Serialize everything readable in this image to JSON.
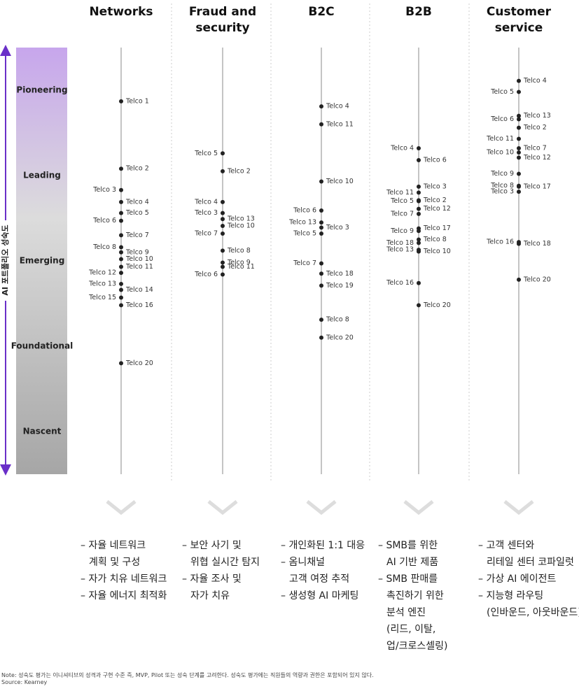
{
  "chart_data": {
    "type": "dot",
    "y_label": "AI 포트폴리오 성숙도",
    "levels": [
      "Pioneering",
      "Leading",
      "Emerging",
      "Foundational",
      "Nascent"
    ],
    "ylim": [
      0,
      5
    ],
    "point_color": "#222222",
    "columns": [
      {
        "name": "Networks",
        "points": [
          {
            "name": "Telco 1",
            "value": 4.37
          },
          {
            "name": "Telco 2",
            "value": 3.58
          },
          {
            "name": "Telco 3",
            "value": 3.33
          },
          {
            "name": "Telco 4",
            "value": 3.19
          },
          {
            "name": "Telco 5",
            "value": 3.06
          },
          {
            "name": "Telco 6",
            "value": 2.97
          },
          {
            "name": "Telco 7",
            "value": 2.8
          },
          {
            "name": "Telco 8",
            "value": 2.66
          },
          {
            "name": "Telco 9",
            "value": 2.6
          },
          {
            "name": "Telco 10",
            "value": 2.52
          },
          {
            "name": "Telco 11",
            "value": 2.43
          },
          {
            "name": "Telco 12",
            "value": 2.36
          },
          {
            "name": "Telco 13",
            "value": 2.23
          },
          {
            "name": "Telco 14",
            "value": 2.16
          },
          {
            "name": "Telco 15",
            "value": 2.07
          },
          {
            "name": "Telco 16",
            "value": 1.98
          },
          {
            "name": "Telco 20",
            "value": 1.3
          }
        ],
        "bullets": [
          [
            "– 자율 네트워크",
            "계획 및 구성"
          ],
          [
            "– 자가 치유 네트워크"
          ],
          [
            "– 자율 에너지 최적화"
          ]
        ]
      },
      {
        "name": "Fraud and security",
        "points": [
          {
            "name": "Telco 5",
            "value": 3.76
          },
          {
            "name": "Telco 2",
            "value": 3.55
          },
          {
            "name": "Telco 4",
            "value": 3.19
          },
          {
            "name": "Telco 3",
            "value": 3.06
          },
          {
            "name": "Telco 13",
            "value": 2.99
          },
          {
            "name": "Telco 10",
            "value": 2.91
          },
          {
            "name": "Telco 7",
            "value": 2.82
          },
          {
            "name": "Telco 8",
            "value": 2.62
          },
          {
            "name": "Telco 9",
            "value": 2.48
          },
          {
            "name": "Telco 11",
            "value": 2.43
          },
          {
            "name": "Telco 6",
            "value": 2.34
          }
        ],
        "bullets": [
          [
            "– 보안 사기 및",
            "위협 실시간 탐지"
          ],
          [
            "– 자율 조사 및",
            "자가 치유"
          ]
        ]
      },
      {
        "name": "B2C",
        "points": [
          {
            "name": "Telco 4",
            "value": 4.31
          },
          {
            "name": "Telco 11",
            "value": 4.1
          },
          {
            "name": "Telco 10",
            "value": 3.43
          },
          {
            "name": "Telco 6",
            "value": 3.09
          },
          {
            "name": "Telco 13",
            "value": 2.95
          },
          {
            "name": "Telco 3",
            "value": 2.89
          },
          {
            "name": "Telco 5",
            "value": 2.82
          },
          {
            "name": "Telco 7",
            "value": 2.47
          },
          {
            "name": "Telco 18",
            "value": 2.35
          },
          {
            "name": "Telco 19",
            "value": 2.21
          },
          {
            "name": "Telco 8",
            "value": 1.81
          },
          {
            "name": "Telco 20",
            "value": 1.6
          }
        ],
        "bullets": [
          [
            "– 개인화된 1:1 대응"
          ],
          [
            "– 옴니채널",
            "고객 여정 추적"
          ],
          [
            "– 생성형 AI 마케팅"
          ]
        ]
      },
      {
        "name": "B2B",
        "points": [
          {
            "name": "Telco 4",
            "value": 3.82
          },
          {
            "name": "Telco 6",
            "value": 3.68
          },
          {
            "name": "Telco 3",
            "value": 3.37
          },
          {
            "name": "Telco 11",
            "value": 3.3
          },
          {
            "name": "Telco 2",
            "value": 3.21
          },
          {
            "name": "Telco 5",
            "value": 3.2
          },
          {
            "name": "Telco 12",
            "value": 3.11
          },
          {
            "name": "Telco 7",
            "value": 3.05
          },
          {
            "name": "Telco 17",
            "value": 2.88
          },
          {
            "name": "Telco 9",
            "value": 2.85
          },
          {
            "name": "Telco 8",
            "value": 2.75
          },
          {
            "name": "Telco 18",
            "value": 2.71
          },
          {
            "name": "Telco 13",
            "value": 2.63
          },
          {
            "name": "Telco 10",
            "value": 2.61
          },
          {
            "name": "Telco 16",
            "value": 2.24
          },
          {
            "name": "Telco 20",
            "value": 1.98
          }
        ],
        "bullets": [
          [
            "– SMB를 위한",
            "AI 기반 제품"
          ],
          [
            "– SMB 판매를",
            "촉진하기 위한",
            "분석 엔진",
            "(리드, 이탈,",
            "업/크로스셀링)"
          ]
        ]
      },
      {
        "name": "Customer service",
        "points": [
          {
            "name": "Telco 4",
            "value": 4.61
          },
          {
            "name": "Telco 5",
            "value": 4.48
          },
          {
            "name": "Telco 13",
            "value": 4.2
          },
          {
            "name": "Telco 6",
            "value": 4.16
          },
          {
            "name": "Telco 2",
            "value": 4.06
          },
          {
            "name": "Telco 11",
            "value": 3.93
          },
          {
            "name": "Telco 7",
            "value": 3.82
          },
          {
            "name": "Telco 10",
            "value": 3.77
          },
          {
            "name": "Telco 12",
            "value": 3.71
          },
          {
            "name": "Telco 9",
            "value": 3.52
          },
          {
            "name": "Telco 8",
            "value": 3.38
          },
          {
            "name": "Telco 17",
            "value": 3.37
          },
          {
            "name": "Telco 3",
            "value": 3.31
          },
          {
            "name": "Telco 16",
            "value": 2.72
          },
          {
            "name": "Telco 18",
            "value": 2.7
          },
          {
            "name": "Telco 20",
            "value": 2.28
          }
        ],
        "bullets": [
          [
            "– 고객 센터와",
            "리테일 센터 코파일럿"
          ],
          [
            "– 가상 AI 에이전트"
          ],
          [
            "– 지능형 라우팅",
            "(인바운드, 아웃바운드)"
          ]
        ]
      }
    ]
  },
  "note": "Note: 성숙도 평가는 이니셔티브의 성격과 구현 수준 즉, MVP, Pilot 또는 성숙 단계를 고려한다. 성숙도 평가에는 직원들의 역량과 권한은 포함되어 있지 않다.",
  "source": "Source: Kearney"
}
